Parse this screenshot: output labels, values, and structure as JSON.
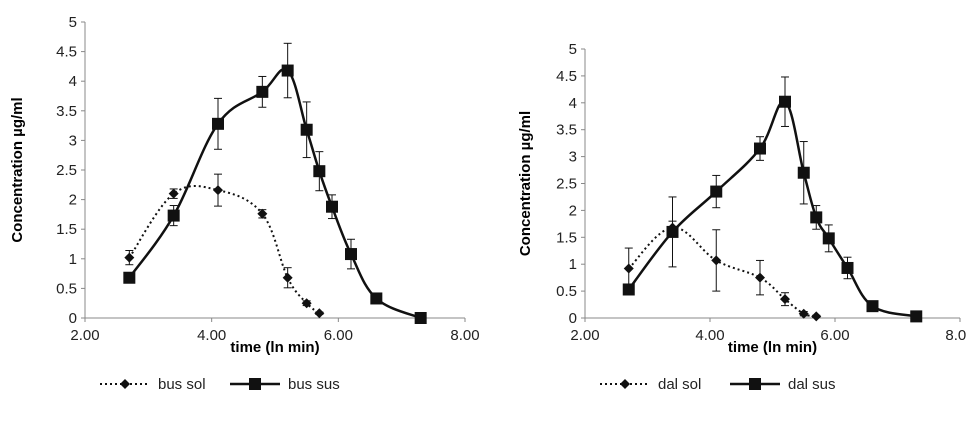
{
  "chart_data": [
    {
      "type": "scatter",
      "xlabel": "time (ln min)",
      "ylabel": "Concentration µg/ml",
      "xlim": [
        2,
        8
      ],
      "ylim": [
        0,
        5
      ],
      "x_ticks": [
        "2.00",
        "4.00",
        "6.00",
        "8.00"
      ],
      "y_ticks": [
        "0",
        "0.5",
        "1",
        "1.5",
        "2",
        "2.5",
        "3",
        "3.5",
        "4",
        "4.5",
        "5"
      ],
      "legend_position": "bottom",
      "series": [
        {
          "name": "bus sol",
          "line": "dotted",
          "marker": "diamond",
          "points": [
            {
              "x": 2.7,
              "y": 1.02,
              "err": 0.12
            },
            {
              "x": 3.4,
              "y": 2.1,
              "err": 0.08
            },
            {
              "x": 4.1,
              "y": 2.16,
              "err": 0.27
            },
            {
              "x": 4.8,
              "y": 1.76,
              "err": 0.07
            },
            {
              "x": 5.2,
              "y": 0.68,
              "err": 0.17
            },
            {
              "x": 5.5,
              "y": 0.25,
              "err": 0.04
            },
            {
              "x": 5.7,
              "y": 0.08,
              "err": 0.02
            }
          ]
        },
        {
          "name": "bus sus",
          "line": "solid",
          "marker": "square",
          "points": [
            {
              "x": 2.7,
              "y": 0.68,
              "err": 0
            },
            {
              "x": 3.4,
              "y": 1.73,
              "err": 0.17
            },
            {
              "x": 4.1,
              "y": 3.28,
              "err": 0.43
            },
            {
              "x": 4.8,
              "y": 3.82,
              "err": 0.26
            },
            {
              "x": 5.2,
              "y": 4.18,
              "err": 0.46
            },
            {
              "x": 5.5,
              "y": 3.18,
              "err": 0.47
            },
            {
              "x": 5.7,
              "y": 2.48,
              "err": 0.33
            },
            {
              "x": 5.9,
              "y": 1.88,
              "err": 0.2
            },
            {
              "x": 6.2,
              "y": 1.08,
              "err": 0.25
            },
            {
              "x": 6.6,
              "y": 0.33,
              "err": 0
            },
            {
              "x": 7.3,
              "y": 0.0,
              "err": 0
            }
          ]
        }
      ]
    },
    {
      "type": "scatter",
      "xlabel": "time (ln min)",
      "ylabel": "Concentration µg/ml",
      "xlim": [
        2,
        8
      ],
      "ylim": [
        0,
        5
      ],
      "x_ticks": [
        "2.00",
        "4.00",
        "6.00",
        "8.00"
      ],
      "y_ticks": [
        "0",
        "0.5",
        "1",
        "1.5",
        "2",
        "2.5",
        "3",
        "3.5",
        "4",
        "4.5",
        "5"
      ],
      "legend_position": "bottom",
      "series": [
        {
          "name": "dal sol",
          "line": "dotted",
          "marker": "diamond",
          "points": [
            {
              "x": 2.7,
              "y": 0.92,
              "err": 0.38
            },
            {
              "x": 3.4,
              "y": 1.68,
              "err": 0.12
            },
            {
              "x": 4.1,
              "y": 1.07,
              "err": 0.57
            },
            {
              "x": 4.8,
              "y": 0.75,
              "err": 0.32
            },
            {
              "x": 5.2,
              "y": 0.35,
              "err": 0.12
            },
            {
              "x": 5.5,
              "y": 0.08,
              "err": 0.04
            },
            {
              "x": 5.7,
              "y": 0.03,
              "err": 0.02
            }
          ]
        },
        {
          "name": "dal sus",
          "line": "solid",
          "marker": "square",
          "points": [
            {
              "x": 2.7,
              "y": 0.53,
              "err": 0
            },
            {
              "x": 3.4,
              "y": 1.6,
              "err": 0.65
            },
            {
              "x": 4.1,
              "y": 2.35,
              "err": 0.3
            },
            {
              "x": 4.8,
              "y": 3.15,
              "err": 0.22
            },
            {
              "x": 5.2,
              "y": 4.02,
              "err": 0.46
            },
            {
              "x": 5.5,
              "y": 2.7,
              "err": 0.58
            },
            {
              "x": 5.7,
              "y": 1.87,
              "err": 0.22
            },
            {
              "x": 5.9,
              "y": 1.48,
              "err": 0.25
            },
            {
              "x": 6.2,
              "y": 0.93,
              "err": 0.2
            },
            {
              "x": 6.6,
              "y": 0.22,
              "err": 0
            },
            {
              "x": 7.3,
              "y": 0.03,
              "err": 0
            }
          ]
        }
      ]
    }
  ]
}
